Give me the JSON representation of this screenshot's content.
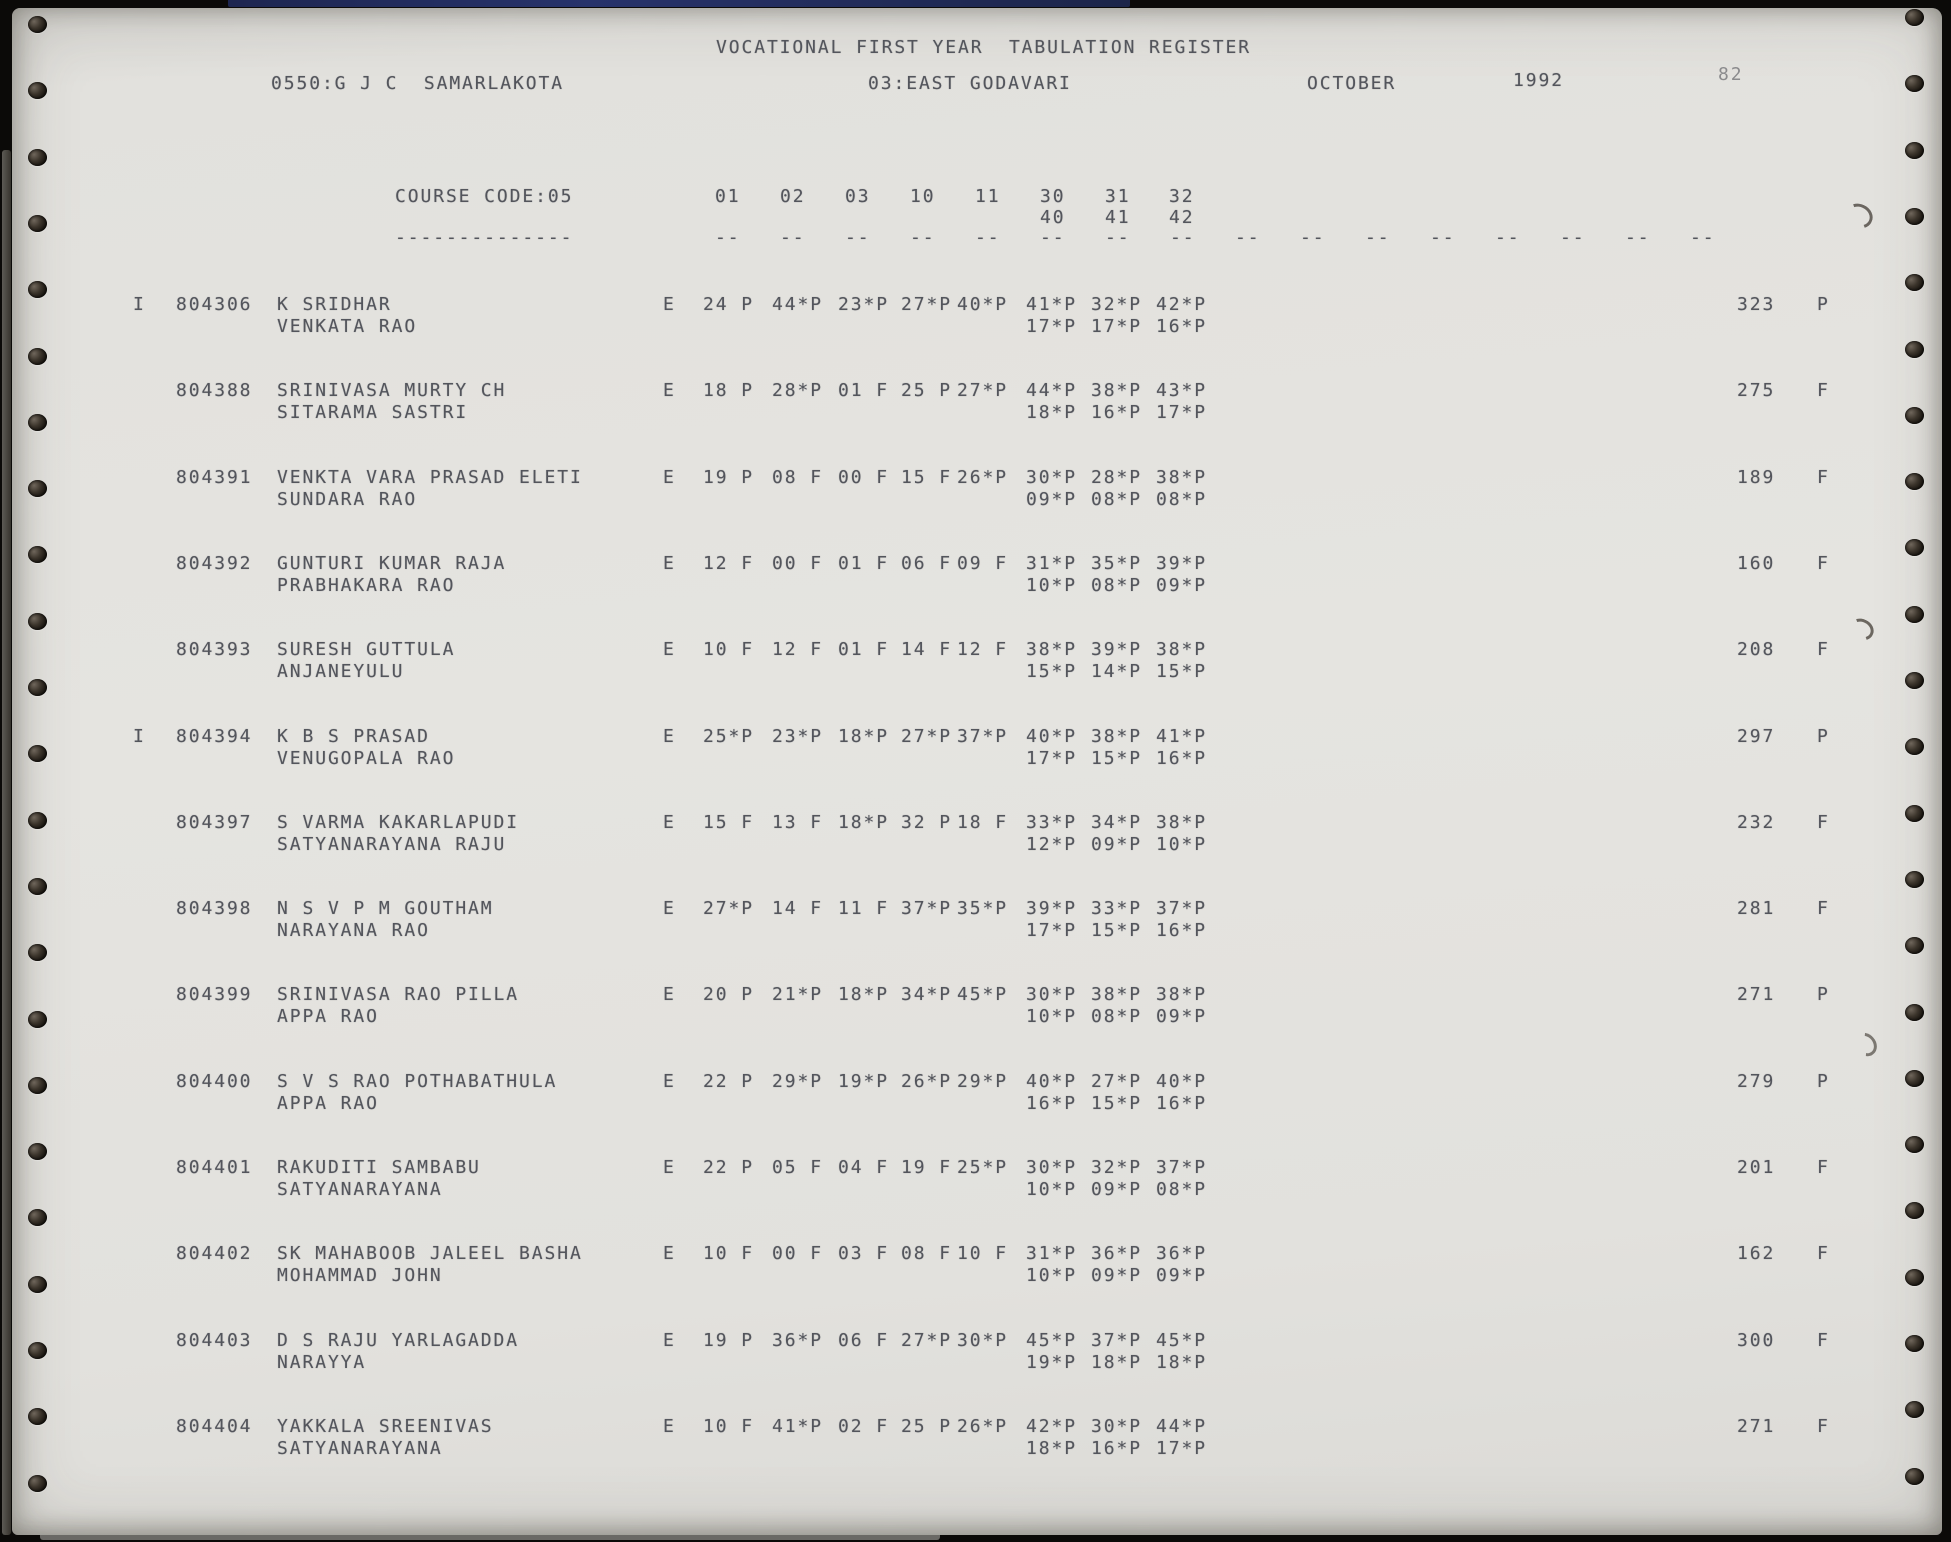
{
  "page": {
    "title": "VOCATIONAL FIRST YEAR  TABULATION REGISTER",
    "institution": "0550:G J C  SAMARLAKOTA",
    "district": "03:EAST GODAVARI",
    "month": "OCTOBER",
    "year": "1992",
    "page_number": "82"
  },
  "course": {
    "label": "COURSE CODE:05",
    "underline": "--------------",
    "subject_codes_row1": [
      "01",
      "02",
      "03",
      "10",
      "11",
      "30",
      "31",
      "32"
    ],
    "subject_codes_row2": [
      "40",
      "41",
      "42"
    ],
    "column_dashes": [
      "--",
      "--",
      "--",
      "--",
      "--",
      "--",
      "--",
      "--",
      "--",
      "--",
      "--",
      "--",
      "--",
      "--",
      "--",
      "--"
    ]
  },
  "table": {
    "students": [
      {
        "flag": "I",
        "regd_no": "804306",
        "name": "K SRIDHAR",
        "parent_name": "VENKATA RAO",
        "medium": "E",
        "marks_row1": [
          "24 P",
          "44*P",
          "23*P",
          "27*P",
          "40*P",
          "41*P",
          "32*P",
          "42*P"
        ],
        "marks_row2": [
          "17*P",
          "17*P",
          "16*P"
        ],
        "total": "323",
        "result": "P"
      },
      {
        "flag": "",
        "regd_no": "804388",
        "name": "SRINIVASA MURTY CH",
        "parent_name": "SITARAMA SASTRI",
        "medium": "E",
        "marks_row1": [
          "18 P",
          "28*P",
          "01 F",
          "25 P",
          "27*P",
          "44*P",
          "38*P",
          "43*P"
        ],
        "marks_row2": [
          "18*P",
          "16*P",
          "17*P"
        ],
        "total": "275",
        "result": "F"
      },
      {
        "flag": "",
        "regd_no": "804391",
        "name": "VENKTA VARA PRASAD ELETI",
        "parent_name": "SUNDARA RAO",
        "medium": "E",
        "marks_row1": [
          "19 P",
          "08 F",
          "00 F",
          "15 F",
          "26*P",
          "30*P",
          "28*P",
          "38*P"
        ],
        "marks_row2": [
          "09*P",
          "08*P",
          "08*P"
        ],
        "total": "189",
        "result": "F"
      },
      {
        "flag": "",
        "regd_no": "804392",
        "name": "GUNTURI KUMAR RAJA",
        "parent_name": "PRABHAKARA RAO",
        "medium": "E",
        "marks_row1": [
          "12 F",
          "00 F",
          "01 F",
          "06 F",
          "09 F",
          "31*P",
          "35*P",
          "39*P"
        ],
        "marks_row2": [
          "10*P",
          "08*P",
          "09*P"
        ],
        "total": "160",
        "result": "F"
      },
      {
        "flag": "",
        "regd_no": "804393",
        "name": "SURESH GUTTULA",
        "parent_name": "ANJANEYULU",
        "medium": "E",
        "marks_row1": [
          "10 F",
          "12 F",
          "01 F",
          "14 F",
          "12 F",
          "38*P",
          "39*P",
          "38*P"
        ],
        "marks_row2": [
          "15*P",
          "14*P",
          "15*P"
        ],
        "total": "208",
        "result": "F"
      },
      {
        "flag": "I",
        "regd_no": "804394",
        "name": "K B S PRASAD",
        "parent_name": "VENUGOPALA RAO",
        "medium": "E",
        "marks_row1": [
          "25*P",
          "23*P",
          "18*P",
          "27*P",
          "37*P",
          "40*P",
          "38*P",
          "41*P"
        ],
        "marks_row2": [
          "17*P",
          "15*P",
          "16*P"
        ],
        "total": "297",
        "result": "P"
      },
      {
        "flag": "",
        "regd_no": "804397",
        "name": "S VARMA KAKARLAPUDI",
        "parent_name": "SATYANARAYANA RAJU",
        "medium": "E",
        "marks_row1": [
          "15 F",
          "13 F",
          "18*P",
          "32 P",
          "18 F",
          "33*P",
          "34*P",
          "38*P"
        ],
        "marks_row2": [
          "12*P",
          "09*P",
          "10*P"
        ],
        "total": "232",
        "result": "F"
      },
      {
        "flag": "",
        "regd_no": "804398",
        "name": "N S V P M GOUTHAM",
        "parent_name": "NARAYANA RAO",
        "medium": "E",
        "marks_row1": [
          "27*P",
          "14 F",
          "11 F",
          "37*P",
          "35*P",
          "39*P",
          "33*P",
          "37*P"
        ],
        "marks_row2": [
          "17*P",
          "15*P",
          "16*P"
        ],
        "total": "281",
        "result": "F"
      },
      {
        "flag": "",
        "regd_no": "804399",
        "name": "SRINIVASA RAO PILLA",
        "parent_name": "APPA RAO",
        "medium": "E",
        "marks_row1": [
          "20 P",
          "21*P",
          "18*P",
          "34*P",
          "45*P",
          "30*P",
          "38*P",
          "38*P"
        ],
        "marks_row2": [
          "10*P",
          "08*P",
          "09*P"
        ],
        "total": "271",
        "result": "P"
      },
      {
        "flag": "",
        "regd_no": "804400",
        "name": "S V S RAO POTHABATHULA",
        "parent_name": "APPA RAO",
        "medium": "E",
        "marks_row1": [
          "22 P",
          "29*P",
          "19*P",
          "26*P",
          "29*P",
          "40*P",
          "27*P",
          "40*P"
        ],
        "marks_row2": [
          "16*P",
          "15*P",
          "16*P"
        ],
        "total": "279",
        "result": "P"
      },
      {
        "flag": "",
        "regd_no": "804401",
        "name": "RAKUDITI SAMBABU",
        "parent_name": "SATYANARAYANA",
        "medium": "E",
        "marks_row1": [
          "22 P",
          "05 F",
          "04 F",
          "19 F",
          "25*P",
          "30*P",
          "32*P",
          "37*P"
        ],
        "marks_row2": [
          "10*P",
          "09*P",
          "08*P"
        ],
        "total": "201",
        "result": "F"
      },
      {
        "flag": "",
        "regd_no": "804402",
        "name": "SK MAHABOOB JALEEL BASHA",
        "parent_name": "MOHAMMAD JOHN",
        "medium": "E",
        "marks_row1": [
          "10 F",
          "00 F",
          "03 F",
          "08 F",
          "10 F",
          "31*P",
          "36*P",
          "36*P"
        ],
        "marks_row2": [
          "10*P",
          "09*P",
          "09*P"
        ],
        "total": "162",
        "result": "F"
      },
      {
        "flag": "",
        "regd_no": "804403",
        "name": "D S RAJU YARLAGADDA",
        "parent_name": "NARAYYA",
        "medium": "E",
        "marks_row1": [
          "19 P",
          "36*P",
          "06 F",
          "27*P",
          "30*P",
          "45*P",
          "37*P",
          "45*P"
        ],
        "marks_row2": [
          "19*P",
          "18*P",
          "18*P"
        ],
        "total": "300",
        "result": "F"
      },
      {
        "flag": "",
        "regd_no": "804404",
        "name": "YAKKALA SREENIVAS",
        "parent_name": "SATYANARAYANA",
        "medium": "E",
        "marks_row1": [
          "10 F",
          "41*P",
          "02 F",
          "25 P",
          "26*P",
          "42*P",
          "30*P",
          "44*P"
        ],
        "marks_row2": [
          "18*P",
          "16*P",
          "17*P"
        ],
        "total": "271",
        "result": "F"
      }
    ]
  },
  "colors": {
    "paper": "#e4e3df",
    "ink": "#53555c",
    "ink_light": "#8b8b8d"
  }
}
